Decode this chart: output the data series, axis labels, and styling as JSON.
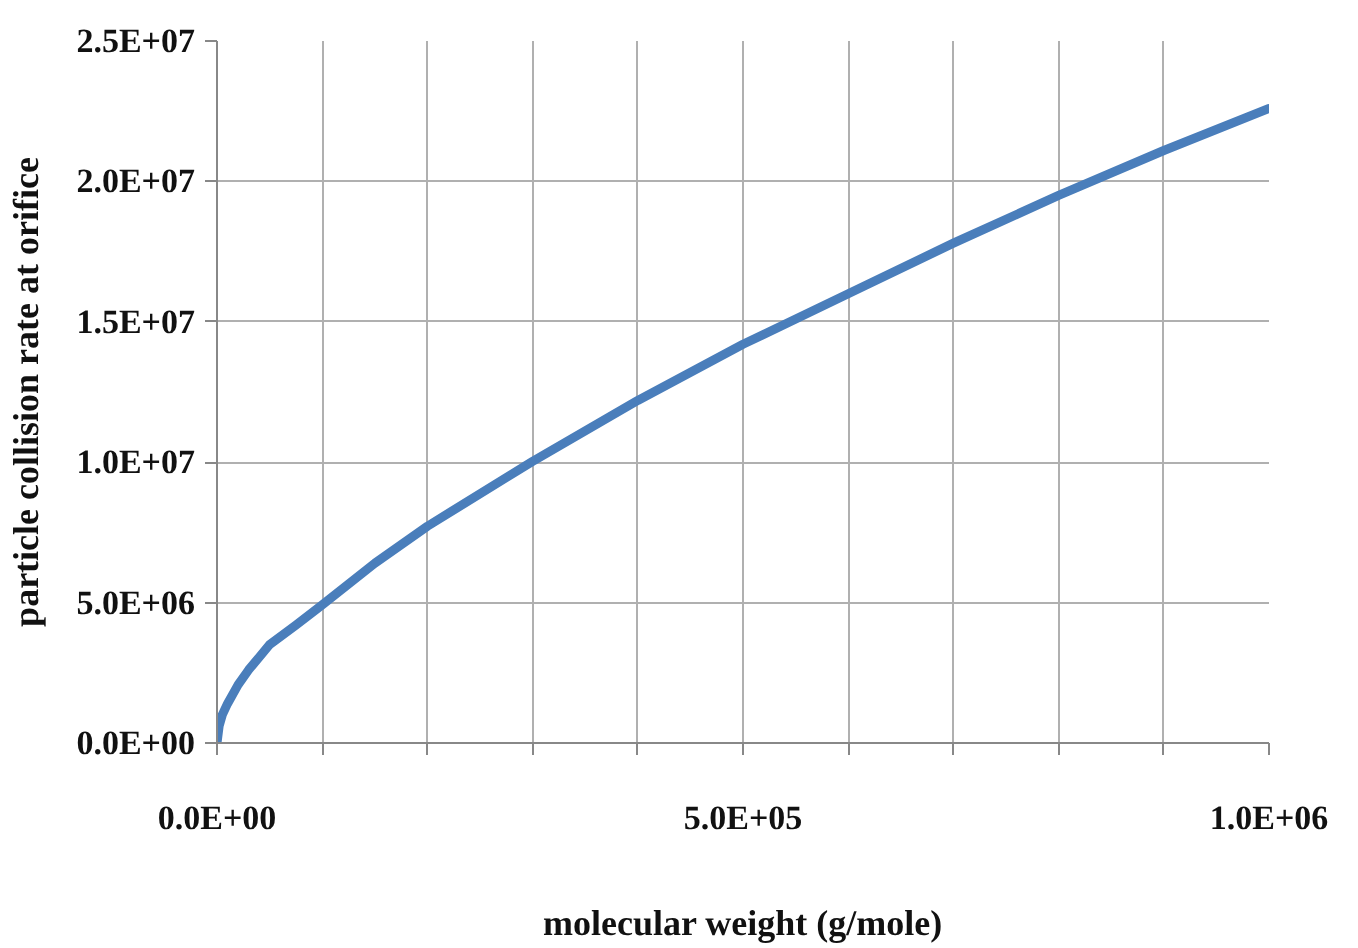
{
  "chart_data": {
    "type": "line",
    "xlabel": "molecular weight (g/mole)",
    "ylabel": "particle collision rate at orifice",
    "x": [
      0,
      2000,
      5000,
      10000,
      20000,
      30000,
      50000,
      75000,
      100000,
      150000,
      200000,
      300000,
      400000,
      500000,
      600000,
      700000,
      800000,
      900000,
      1000000
    ],
    "series": [
      {
        "color": "#4a7ebb",
        "values": [
          0,
          600000,
          1000000,
          1400000,
          2070000,
          2600000,
          3500000,
          4200000,
          4920000,
          6400000,
          7720000,
          10030000,
          12200000,
          14200000,
          16000000,
          17800000,
          19500000,
          21100000,
          22600000
        ]
      }
    ],
    "xlim": [
      0,
      1000000
    ],
    "xticks": [
      {
        "value": 0,
        "label": "0.0E+00"
      },
      {
        "value": 100000,
        "label": null
      },
      {
        "value": 200000,
        "label": null
      },
      {
        "value": 300000,
        "label": null
      },
      {
        "value": 400000,
        "label": null
      },
      {
        "value": 500000,
        "label": "5.0E+05"
      },
      {
        "value": 600000,
        "label": null
      },
      {
        "value": 700000,
        "label": null
      },
      {
        "value": 800000,
        "label": null
      },
      {
        "value": 900000,
        "label": null
      },
      {
        "value": 1000000,
        "label": "1.0E+06"
      }
    ],
    "ylim": [
      0,
      25000000
    ],
    "yticks": [
      {
        "value": 0,
        "label": "0.0E+00"
      },
      {
        "value": 5000000,
        "label": "5.0E+06"
      },
      {
        "value": 10000000,
        "label": "1.0E+07"
      },
      {
        "value": 15000000,
        "label": "1.5E+07"
      },
      {
        "value": 20000000,
        "label": "2.0E+07"
      },
      {
        "value": 25000000,
        "label": "2.5E+07"
      }
    ],
    "grid": true,
    "marker": "none",
    "line_style": "solid"
  }
}
